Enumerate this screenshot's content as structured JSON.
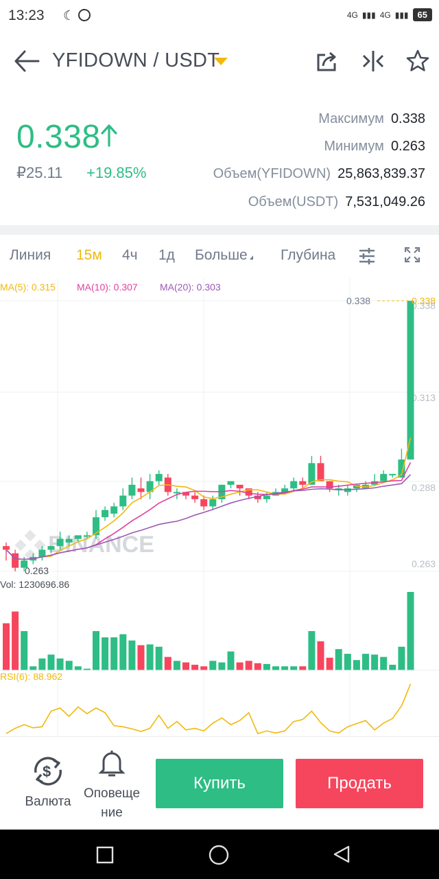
{
  "status": {
    "time": "13:23",
    "net1": "4G",
    "net2": "4G",
    "battery": "65"
  },
  "header": {
    "pair": "YFIDOWN / USDT"
  },
  "price": {
    "last": "0.338",
    "fiat": "₽25.11",
    "change": "+19.85%"
  },
  "stats": [
    {
      "label": "Максимум",
      "value": "0.338"
    },
    {
      "label": "Минимум",
      "value": "0.263"
    },
    {
      "label": "Объем(YFIDOWN)",
      "value": "25,863,839.37"
    },
    {
      "label": "Объем(USDT)",
      "value": "7,531,049.26"
    }
  ],
  "tabs": {
    "line": "Линия",
    "m15": "15м",
    "h4": "4ч",
    "d1": "1д",
    "more": "Больше",
    "depth": "Глубина"
  },
  "indicators": {
    "ma5": "MA(5): 0.315",
    "ma10": "MA(10): 0.307",
    "ma20": "MA(20): 0.303",
    "vol": "Vol: 1230696.86",
    "rsi": "RSI(6): 88.962"
  },
  "axis": {
    "ticks": [
      "0.338",
      "0.313",
      "0.288",
      "0.263"
    ],
    "high_label": "0.338",
    "low_label": "0.263",
    "last_label": "0.338"
  },
  "watermark": "BINANCE",
  "colors": {
    "up": "#2ebd85",
    "down": "#f6465d",
    "ma5": "#f0b90b",
    "ma10": "#e040a0",
    "ma20": "#9b59b6"
  },
  "chart_data": {
    "type": "candlestick",
    "ylim": [
      0.263,
      0.338
    ],
    "candles": [
      [
        0.27,
        0.269,
        0.271,
        0.266
      ],
      [
        0.268,
        0.264,
        0.269,
        0.263
      ],
      [
        0.264,
        0.266,
        0.267,
        0.263
      ],
      [
        0.266,
        0.267,
        0.268,
        0.265
      ],
      [
        0.267,
        0.269,
        0.27,
        0.266
      ],
      [
        0.269,
        0.27,
        0.27,
        0.268
      ],
      [
        0.27,
        0.272,
        0.274,
        0.269
      ],
      [
        0.271,
        0.272,
        0.273,
        0.27
      ],
      [
        0.272,
        0.273,
        0.273,
        0.271
      ],
      [
        0.273,
        0.273,
        0.274,
        0.272
      ],
      [
        0.273,
        0.278,
        0.28,
        0.272
      ],
      [
        0.278,
        0.28,
        0.281,
        0.277
      ],
      [
        0.279,
        0.281,
        0.282,
        0.278
      ],
      [
        0.281,
        0.284,
        0.286,
        0.28
      ],
      [
        0.284,
        0.287,
        0.289,
        0.283
      ],
      [
        0.286,
        0.285,
        0.289,
        0.283
      ],
      [
        0.285,
        0.288,
        0.29,
        0.283
      ],
      [
        0.288,
        0.29,
        0.291,
        0.287
      ],
      [
        0.289,
        0.285,
        0.29,
        0.284
      ],
      [
        0.285,
        0.285,
        0.286,
        0.283
      ],
      [
        0.285,
        0.284,
        0.285,
        0.283
      ],
      [
        0.284,
        0.283,
        0.285,
        0.282
      ],
      [
        0.283,
        0.281,
        0.284,
        0.28
      ],
      [
        0.281,
        0.283,
        0.284,
        0.28
      ],
      [
        0.283,
        0.287,
        0.287,
        0.282
      ],
      [
        0.287,
        0.288,
        0.288,
        0.286
      ],
      [
        0.287,
        0.286,
        0.287,
        0.284
      ],
      [
        0.286,
        0.284,
        0.286,
        0.283
      ],
      [
        0.284,
        0.283,
        0.285,
        0.282
      ],
      [
        0.283,
        0.284,
        0.285,
        0.282
      ],
      [
        0.284,
        0.285,
        0.286,
        0.284
      ],
      [
        0.285,
        0.286,
        0.287,
        0.285
      ],
      [
        0.286,
        0.288,
        0.289,
        0.285
      ],
      [
        0.288,
        0.287,
        0.289,
        0.286
      ],
      [
        0.287,
        0.293,
        0.295,
        0.287
      ],
      [
        0.293,
        0.288,
        0.295,
        0.288
      ],
      [
        0.288,
        0.286,
        0.288,
        0.285
      ],
      [
        0.286,
        0.286,
        0.287,
        0.284
      ],
      [
        0.285,
        0.286,
        0.287,
        0.284
      ],
      [
        0.286,
        0.287,
        0.287,
        0.285
      ],
      [
        0.286,
        0.287,
        0.288,
        0.286
      ],
      [
        0.287,
        0.288,
        0.29,
        0.287
      ],
      [
        0.288,
        0.29,
        0.291,
        0.288
      ],
      [
        0.29,
        0.29,
        0.29,
        0.289
      ],
      [
        0.289,
        0.294,
        0.297,
        0.289
      ],
      [
        0.294,
        0.338,
        0.338,
        0.294
      ]
    ],
    "volume": [
      0.6,
      0.75,
      0.5,
      0.05,
      0.15,
      0.2,
      0.15,
      0.12,
      0.05,
      0.02,
      0.5,
      0.42,
      0.42,
      0.46,
      0.38,
      0.32,
      0.33,
      0.3,
      0.17,
      0.12,
      0.1,
      0.07,
      0.05,
      0.12,
      0.1,
      0.24,
      0.1,
      0.12,
      0.09,
      0.08,
      0.05,
      0.05,
      0.05,
      0.05,
      0.5,
      0.37,
      0.16,
      0.27,
      0.21,
      0.13,
      0.21,
      0.2,
      0.17,
      0.07,
      0.3,
      1.0
    ],
    "rsi": [
      0.05,
      0.15,
      0.22,
      0.16,
      0.18,
      0.48,
      0.54,
      0.38,
      0.56,
      0.43,
      0.54,
      0.45,
      0.2,
      0.18,
      0.14,
      0.09,
      0.15,
      0.4,
      0.15,
      0.28,
      0.12,
      0.15,
      0.1,
      0.25,
      0.35,
      0.22,
      0.3,
      0.45,
      0.05,
      0.1,
      0.06,
      0.1,
      0.28,
      0.32,
      0.48,
      0.26,
      0.1,
      0.06,
      0.18,
      0.24,
      0.3,
      0.12,
      0.25,
      0.34,
      0.58,
      1.0
    ]
  }
}
